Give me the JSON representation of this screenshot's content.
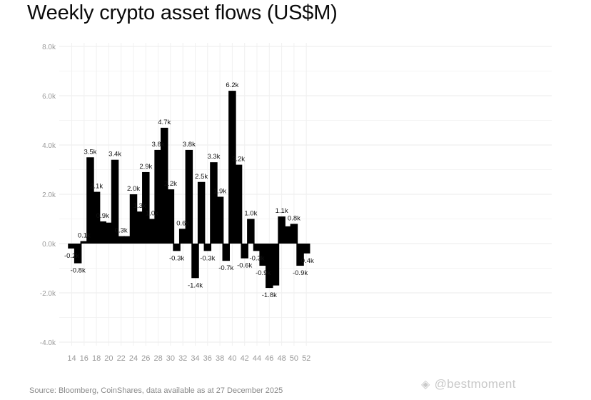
{
  "title": "Weekly crypto asset flows (US$M)",
  "source": "Source: Bloomberg, CoinShares, data available as at 27 December 2025",
  "watermark": {
    "icon": "binance-logo-icon",
    "text": "@bestmoment"
  },
  "chart_data": {
    "type": "bar",
    "title": "Weekly crypto asset flows (US$M)",
    "xlabel": "",
    "ylabel": "",
    "ylim": [
      -4.0,
      8.0
    ],
    "grid": true,
    "bar_color": "#000000",
    "y_ticks": [
      {
        "value": -4.0,
        "label": "-4.0k"
      },
      {
        "value": -2.0,
        "label": "-2.0k"
      },
      {
        "value": 0.0,
        "label": "0.0k"
      },
      {
        "value": 2.0,
        "label": "2.0k"
      },
      {
        "value": 4.0,
        "label": "4.0k"
      },
      {
        "value": 6.0,
        "label": "6.0k"
      },
      {
        "value": 8.0,
        "label": "8.0k"
      }
    ],
    "x_tick_labels": [
      "14",
      "16",
      "18",
      "20",
      "22",
      "24",
      "26",
      "28",
      "30",
      "32",
      "34",
      "36",
      "38",
      "40",
      "42",
      "44",
      "46",
      "48",
      "50",
      "52"
    ],
    "categories": [
      "14",
      "15",
      "16",
      "17",
      "18",
      "19",
      "20",
      "21",
      "22",
      "23",
      "24",
      "25",
      "26",
      "27",
      "28",
      "29",
      "30",
      "31",
      "32",
      "33",
      "34",
      "35",
      "36",
      "37",
      "38",
      "39",
      "40",
      "41",
      "42",
      "43",
      "44",
      "45",
      "46",
      "47",
      "48",
      "49",
      "50",
      "51",
      "52"
    ],
    "values": [
      -0.2,
      -0.8,
      0.1,
      3.5,
      2.1,
      0.9,
      0.85,
      3.4,
      0.3,
      0.3,
      2.0,
      1.3,
      2.9,
      1.0,
      3.8,
      4.7,
      2.2,
      -0.3,
      0.6,
      3.8,
      -1.4,
      2.5,
      -0.3,
      3.3,
      1.9,
      -0.7,
      6.2,
      3.2,
      -0.6,
      1.0,
      -0.3,
      -0.9,
      -1.8,
      -1.7,
      1.1,
      0.7,
      0.8,
      -0.9,
      -0.4
    ],
    "data_labels": [
      "-0.2k",
      "-0.8k",
      "0.1k",
      "3.5k",
      "2.1k",
      "0.9k",
      "",
      "3.4k",
      "0.3k",
      "",
      "2.0k",
      "1.3k",
      "2.9k",
      "1.0k",
      "3.8k",
      "4.7k",
      "2.2k",
      "-0.3k",
      "0.6k",
      "3.8k",
      "-1.4k",
      "2.5k",
      "-0.3k",
      "3.3k",
      "1.9k",
      "-0.7k",
      "6.2k",
      "3.2k",
      "-0.6k",
      "1.0k",
      "-0.3k",
      "-0.9k",
      "-1.8k",
      "",
      "1.1k",
      "",
      "0.8k",
      "-0.9k",
      "-0.4k"
    ]
  }
}
